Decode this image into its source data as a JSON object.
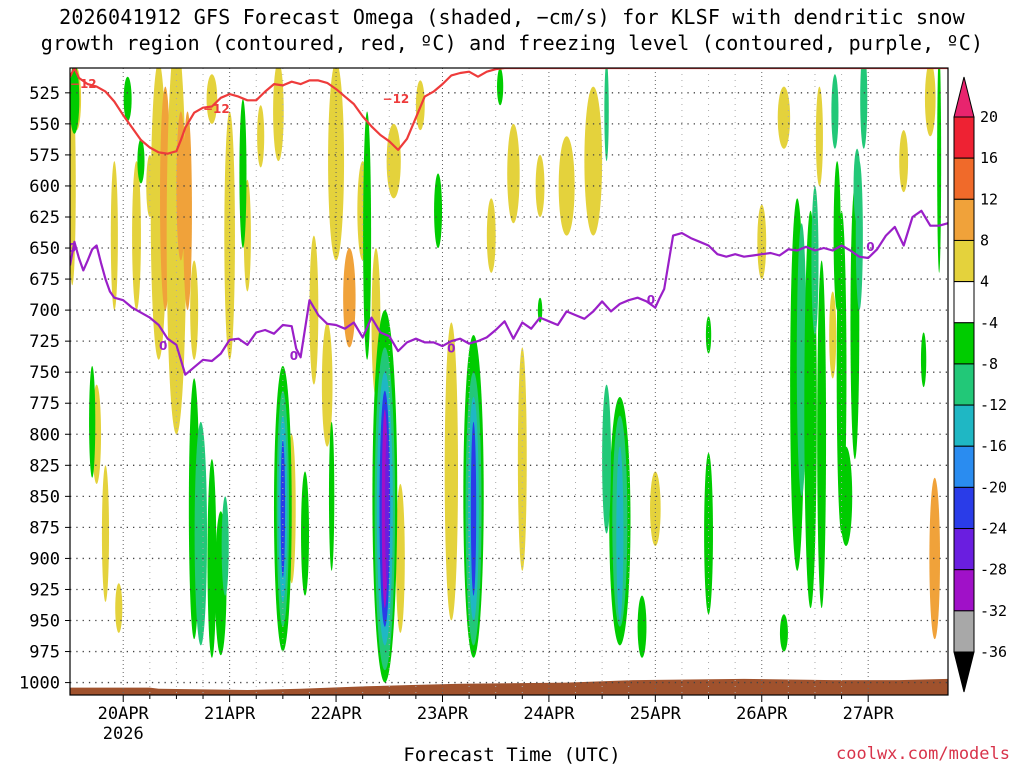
{
  "title_lines": [
    "2026041912 GFS Forecast Omega (shaded, −cm/s) for KLSF with dendritic snow",
    "growth region (contoured, red, ºC) and freezing level (contoured, purple, ºC)"
  ],
  "credit": "coolwx.com/models",
  "chart_data": {
    "type": "heatmap",
    "title": "2026041912 GFS Forecast Omega (shaded, −cm/s) for KLSF with dendritic snow growth region (contoured, red, ºC) and freezing level (contoured, purple, ºC)",
    "xlabel": "Forecast Time (UTC)",
    "ylabel": "",
    "x_ticks": [
      "20APR",
      "21APR",
      "22APR",
      "23APR",
      "24APR",
      "25APR",
      "26APR",
      "27APR"
    ],
    "x_tick_year": "2026",
    "xlim_hours": [
      -12,
      186
    ],
    "y_ticks": [
      525,
      550,
      575,
      600,
      625,
      650,
      675,
      700,
      725,
      750,
      775,
      800,
      825,
      850,
      875,
      900,
      925,
      950,
      975,
      1000
    ],
    "ylim": [
      505,
      1010
    ],
    "grid": true,
    "colorbar": {
      "ticks": [
        20,
        16,
        12,
        8,
        4,
        -4,
        -8,
        -12,
        -16,
        -20,
        -24,
        -28,
        -32,
        -36
      ],
      "bands": [
        {
          "from": 16,
          "to": 20,
          "color": "#ee2233"
        },
        {
          "from": 12,
          "to": 16,
          "color": "#f06a2a"
        },
        {
          "from": 8,
          "to": 12,
          "color": "#f0a23a"
        },
        {
          "from": 4,
          "to": 8,
          "color": "#e4d23c"
        },
        {
          "from": -4,
          "to": 4,
          "color": "#ffffff"
        },
        {
          "from": -8,
          "to": -4,
          "color": "#00cc00"
        },
        {
          "from": -12,
          "to": -8,
          "color": "#22c878"
        },
        {
          "from": -16,
          "to": -12,
          "color": "#1fb7c4"
        },
        {
          "from": -20,
          "to": -16,
          "color": "#2a8cf0"
        },
        {
          "from": -24,
          "to": -20,
          "color": "#2a3ce8"
        },
        {
          "from": -28,
          "to": -24,
          "color": "#6a1ee0"
        },
        {
          "from": -32,
          "to": -28,
          "color": "#a011c8"
        },
        {
          "from": -36,
          "to": -32,
          "color": "#a8a8a8"
        }
      ],
      "top_color": "#e8246e",
      "bottom_color": "#000000"
    },
    "colors": {
      "dendritic_contour": "#ee3b3b",
      "freezing_contour": "#9a1fc8",
      "terrain": "#a0522d",
      "grid": "#888888"
    },
    "contour_labels": {
      "dendritic": "−12",
      "freezing": "0"
    },
    "series": [
      {
        "kind": "contour",
        "level": -12,
        "x_hours": [
          -12,
          -11,
          -10,
          -8,
          -6,
          -4,
          -2,
          0,
          2,
          4,
          6,
          8,
          10,
          12,
          13,
          14,
          16,
          18,
          20,
          22,
          24,
          26,
          28,
          30,
          32,
          34,
          36,
          38,
          40,
          42,
          44,
          46,
          48,
          50,
          52,
          54,
          56,
          58,
          60,
          62,
          64,
          66,
          68,
          70,
          72,
          74,
          76,
          78,
          80,
          82,
          84,
          86,
          88,
          90,
          92,
          94,
          96,
          98,
          100,
          105,
          110,
          115,
          120,
          125,
          130,
          135,
          140,
          145,
          150,
          155,
          160,
          165,
          170,
          175,
          180,
          186
        ],
        "y_hpa": [
          512,
          505,
          513,
          518,
          520,
          524,
          532,
          543,
          553,
          563,
          569,
          573,
          574,
          572,
          563,
          553,
          541,
          537,
          536,
          529,
          526,
          528,
          531,
          531,
          524,
          518,
          519,
          516,
          518,
          515,
          515,
          517,
          522,
          528,
          534,
          544,
          552,
          559,
          564,
          571,
          562,
          545,
          528,
          524,
          518,
          511,
          509,
          508,
          512,
          508,
          506,
          505,
          505,
          505,
          505,
          505,
          505,
          505,
          505,
          505,
          505,
          505,
          505,
          505,
          505,
          505,
          505,
          505,
          505,
          505,
          505,
          505,
          505,
          505,
          505,
          505
        ]
      },
      {
        "kind": "contour",
        "level": 0,
        "x_hours": [
          -12,
          -11,
          -10,
          -9,
          -8,
          -7,
          -6,
          -5,
          -4,
          -3,
          -2,
          0,
          2,
          4,
          6,
          8,
          10,
          12,
          14,
          16,
          18,
          20,
          22,
          24,
          26,
          28,
          30,
          32,
          34,
          36,
          38,
          39,
          40,
          42,
          44,
          46,
          48,
          50,
          52,
          54,
          56,
          58,
          60,
          62,
          64,
          66,
          68,
          70,
          72,
          74,
          76,
          78,
          80,
          82,
          84,
          86,
          88,
          90,
          92,
          94,
          96,
          98,
          100,
          102,
          104,
          106,
          108,
          110,
          112,
          114,
          116,
          118,
          120,
          121,
          122,
          124,
          126,
          128,
          130,
          132,
          134,
          136,
          138,
          140,
          142,
          144,
          146,
          148,
          150,
          152,
          154,
          156,
          158,
          160,
          162,
          164,
          166,
          168,
          170,
          172,
          174,
          176,
          178,
          180,
          182,
          184,
          186
        ],
        "y_hpa": [
          664,
          645,
          658,
          668,
          660,
          651,
          648,
          662,
          675,
          685,
          690,
          692,
          698,
          702,
          706,
          712,
          723,
          728,
          752,
          746,
          740,
          741,
          735,
          724,
          723,
          728,
          718,
          716,
          719,
          712,
          713,
          731,
          738,
          692,
          704,
          711,
          712,
          715,
          710,
          722,
          706,
          718,
          721,
          733,
          726,
          723,
          726,
          726,
          729,
          725,
          723,
          727,
          725,
          722,
          716,
          709,
          723,
          710,
          715,
          706,
          709,
          712,
          701,
          704,
          707,
          701,
          693,
          701,
          695,
          692,
          690,
          693,
          698,
          690,
          683,
          640,
          638,
          642,
          645,
          648,
          655,
          657,
          655,
          657,
          656,
          655,
          654,
          656,
          651,
          652,
          649,
          652,
          650,
          652,
          648,
          652,
          657,
          658,
          651,
          640,
          633,
          648,
          625,
          620,
          632,
          632,
          630
        ]
      }
    ]
  }
}
